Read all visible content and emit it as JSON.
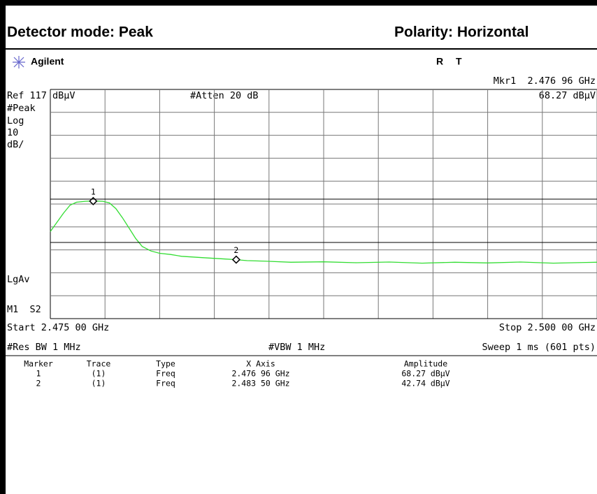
{
  "header": {
    "left": "Detector mode: Peak",
    "right": "Polarity: Horizontal"
  },
  "screen": {
    "brand": "Agilent",
    "status_r": "R",
    "status_t": "T",
    "marker_freq": "Mkr1  2.476 96 GHz",
    "marker_amp": "68.27 dBµV",
    "ref": "Ref 117 dBµV",
    "atten": "#Atten 20 dB",
    "left_labels": [
      "#Peak",
      "Log",
      "10",
      "dB/"
    ],
    "lgav": "LgAv",
    "m1s2": "M1  S2",
    "start": "Start 2.475 00 GHz",
    "stop": "Stop 2.500 00 GHz",
    "rbw": "#Res BW 1 MHz",
    "vbw": "#VBW 1 MHz",
    "sweep": "Sweep 1 ms (601 pts)"
  },
  "table": {
    "columns": [
      "Marker",
      "Trace",
      "Type",
      "X Axis",
      "Amplitude"
    ],
    "rows": [
      [
        "1",
        "(1)",
        "Freq",
        "2.476 96 GHz",
        "68.27 dBµV"
      ],
      [
        "2",
        "(1)",
        "Freq",
        "2.483 50 GHz",
        "42.74 dBµV"
      ]
    ]
  },
  "chart_data": {
    "type": "line",
    "color": "#33dd33",
    "x": [
      2.475,
      2.4753,
      2.4756,
      2.4759,
      2.4762,
      2.4766,
      2.477,
      2.4774,
      2.4777,
      2.478,
      2.4783,
      2.4786,
      2.4789,
      2.4792,
      2.4796,
      2.48,
      2.4805,
      2.481,
      2.482,
      2.483,
      2.4835,
      2.484,
      2.485,
      2.486,
      2.4875,
      2.489,
      2.4905,
      2.492,
      2.4935,
      2.495,
      2.4965,
      2.498,
      2.4995,
      2.5
    ],
    "values": [
      55,
      59,
      63,
      66.5,
      67.8,
      68.2,
      68.3,
      68.2,
      67.5,
      65,
      61,
      56.5,
      52,
      48.5,
      46.5,
      45.5,
      45,
      44.2,
      43.6,
      43,
      42.74,
      42.3,
      42,
      41.6,
      41.8,
      41.4,
      41.7,
      41.2,
      41.6,
      41.3,
      41.7,
      41.2,
      41.5,
      41.6
    ],
    "markers": [
      {
        "label": "1",
        "x": 2.47696,
        "value": 68.27
      },
      {
        "label": "2",
        "x": 2.4835,
        "value": 42.74
      }
    ],
    "xlim": [
      2.475,
      2.5
    ],
    "ylim": [
      17,
      117
    ],
    "grid_divisions": 10
  }
}
